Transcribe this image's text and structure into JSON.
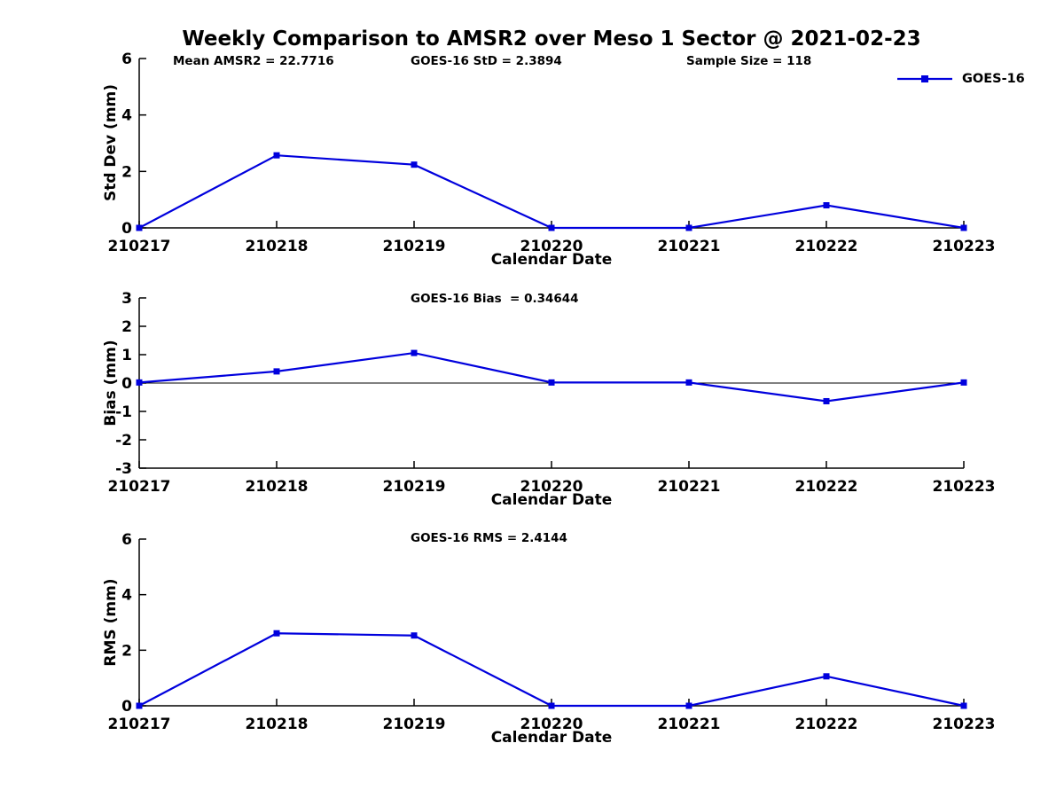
{
  "title": "Weekly Comparison to AMSR2 over Meso 1 Sector @ 2021-02-23",
  "colors": {
    "series": "#0000DD",
    "axis": "#000000",
    "zero_line": "#000000"
  },
  "legend": {
    "label": "GOES-16"
  },
  "chart_data": [
    {
      "type": "line",
      "title": "",
      "ylabel": "Std Dev (mm)",
      "xlabel": "Calendar Date",
      "ylim": [
        0,
        6
      ],
      "yticks": [
        0,
        2,
        4,
        6
      ],
      "grid": false,
      "legend_position": "top-right",
      "categories": [
        "210217",
        "210218",
        "210219",
        "210220",
        "210221",
        "210222",
        "210223"
      ],
      "series": [
        {
          "name": "GOES-16",
          "values": [
            0,
            2.57,
            2.24,
            0,
            0,
            0.8,
            0
          ]
        }
      ],
      "annotations": [
        "Mean AMSR2 = 22.7716",
        "GOES-16 StD = 2.3894",
        "Sample Size = 118"
      ]
    },
    {
      "type": "line",
      "title": "",
      "ylabel": "Bias (mm)",
      "xlabel": "Calendar Date",
      "ylim": [
        -3,
        3
      ],
      "yticks": [
        -3,
        -2,
        -1,
        0,
        1,
        2,
        3
      ],
      "zero_line": true,
      "grid": false,
      "categories": [
        "210217",
        "210218",
        "210219",
        "210220",
        "210221",
        "210222",
        "210223"
      ],
      "series": [
        {
          "name": "GOES-16",
          "values": [
            0.02,
            0.41,
            1.06,
            0.02,
            0.02,
            -0.64,
            0.02
          ]
        }
      ],
      "annotations": [
        "GOES-16 Bias  = 0.34644"
      ]
    },
    {
      "type": "line",
      "title": "",
      "ylabel": "RMS (mm)",
      "xlabel": "Calendar Date",
      "ylim": [
        0,
        6
      ],
      "yticks": [
        0,
        2,
        4,
        6
      ],
      "grid": false,
      "categories": [
        "210217",
        "210218",
        "210219",
        "210220",
        "210221",
        "210222",
        "210223"
      ],
      "series": [
        {
          "name": "GOES-16",
          "values": [
            0,
            2.61,
            2.53,
            0,
            0,
            1.06,
            0
          ]
        }
      ],
      "annotations": [
        "GOES-16 RMS = 2.4144"
      ]
    }
  ]
}
